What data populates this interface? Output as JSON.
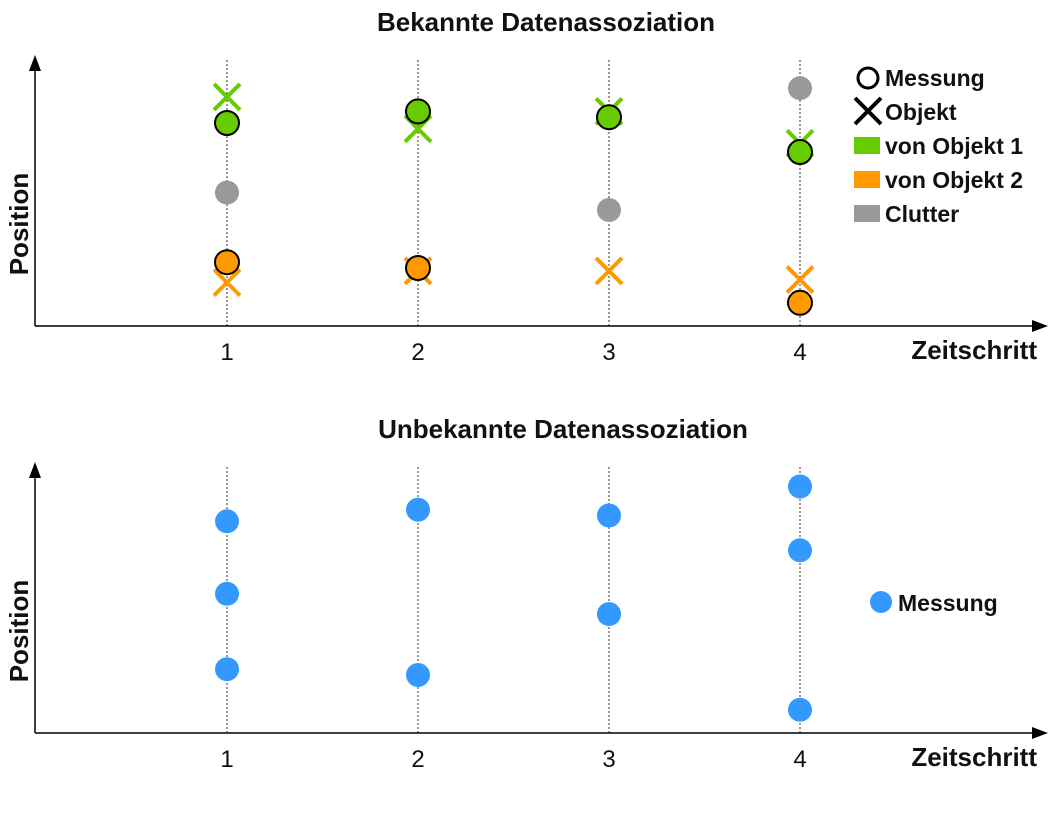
{
  "colors": {
    "objekt1": "#66cc00",
    "objekt2": "#ff9900",
    "clutter": "#999999",
    "messung": "#3399ff",
    "axis": "#000000"
  },
  "chart_data": [
    {
      "type": "scatter",
      "title": "Bekannte Datenassoziation",
      "xlabel": "Zeitschritt",
      "ylabel": "Position",
      "x_ticks": [
        1,
        2,
        3,
        4
      ],
      "grid": "vertical dotted lines at each Zeitschritt",
      "legend_placement": "top-right",
      "legend": [
        {
          "label": "Messung",
          "symbol": "circle-outline"
        },
        {
          "label": "Objekt",
          "symbol": "x"
        },
        {
          "label": "von Objekt 1",
          "symbol": "square",
          "color": "#66cc00"
        },
        {
          "label": "von Objekt 2",
          "symbol": "square",
          "color": "#ff9900"
        },
        {
          "label": "Clutter",
          "symbol": "square",
          "color": "#999999"
        }
      ],
      "series": [
        {
          "group": "objekt1",
          "kind": "objekt",
          "points": [
            [
              1,
              7.9
            ],
            [
              2,
              6.8
            ],
            [
              3,
              7.4
            ],
            [
              4,
              6.3
            ]
          ]
        },
        {
          "group": "objekt1",
          "kind": "messung",
          "points": [
            [
              1,
              7.0
            ],
            [
              2,
              7.4
            ],
            [
              3,
              7.2
            ],
            [
              4,
              6.0
            ]
          ]
        },
        {
          "group": "objekt2",
          "kind": "objekt",
          "points": [
            [
              1,
              1.5
            ],
            [
              2,
              1.9
            ],
            [
              3,
              1.9
            ],
            [
              4,
              1.6
            ]
          ]
        },
        {
          "group": "objekt2",
          "kind": "messung",
          "points": [
            [
              1,
              2.2
            ],
            [
              2,
              2.0
            ],
            [
              4,
              0.8
            ]
          ]
        },
        {
          "group": "clutter",
          "kind": "messung",
          "points": [
            [
              1,
              4.6
            ],
            [
              3,
              4.0
            ],
            [
              4,
              8.2
            ]
          ]
        }
      ]
    },
    {
      "type": "scatter",
      "title": "Unbekannte Datenassoziation",
      "xlabel": "Zeitschritt",
      "ylabel": "Position",
      "x_ticks": [
        1,
        2,
        3,
        4
      ],
      "grid": "vertical dotted lines at each Zeitschritt",
      "legend_placement": "right",
      "legend": [
        {
          "label": "Messung",
          "symbol": "filled-circle",
          "color": "#3399ff"
        }
      ],
      "series": [
        {
          "group": "messung",
          "kind": "messung",
          "points": [
            [
              1,
              7.3
            ],
            [
              1,
              4.8
            ],
            [
              1,
              2.2
            ],
            [
              2,
              7.7
            ],
            [
              2,
              2.0
            ],
            [
              3,
              7.5
            ],
            [
              3,
              4.1
            ],
            [
              4,
              8.5
            ],
            [
              4,
              6.3
            ],
            [
              4,
              0.8
            ]
          ]
        }
      ]
    }
  ]
}
